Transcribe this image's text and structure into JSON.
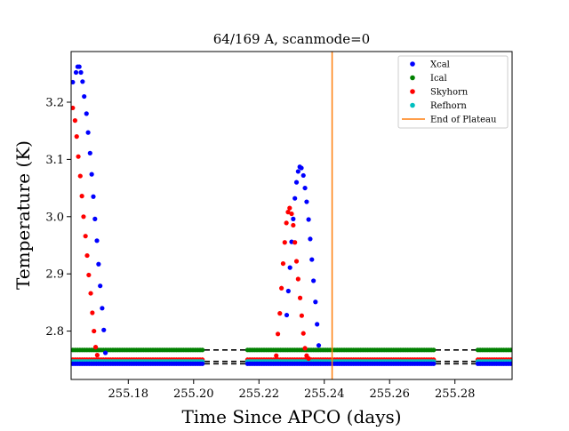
{
  "chart_data": {
    "type": "scatter",
    "title": "64/169 A, scanmode=0",
    "xlabel": "Time Since APCO (days)",
    "ylabel": "Temperature (K)",
    "xlim": [
      255.1625,
      255.2975
    ],
    "ylim": [
      2.7155,
      3.2885
    ],
    "xticks": [
      255.18,
      255.2,
      255.22,
      255.24,
      255.26,
      255.28
    ],
    "xtick_labels": [
      "255.18",
      "255.20",
      "255.22",
      "255.24",
      "255.26",
      "255.28"
    ],
    "yticks": [
      2.8,
      2.9,
      3.0,
      3.1,
      3.2
    ],
    "ytick_labels": [
      "2.8",
      "2.9",
      "3.0",
      "3.1",
      "3.2"
    ],
    "grid": false,
    "legend_position": "top-right",
    "series": [
      {
        "name": "Xcal",
        "color": "#0000ff",
        "points": [
          [
            255.163,
            3.235
          ],
          [
            255.164,
            3.252
          ],
          [
            255.1645,
            3.262
          ],
          [
            255.165,
            3.262
          ],
          [
            255.1655,
            3.252
          ],
          [
            255.166,
            3.236
          ],
          [
            255.1665,
            3.21
          ],
          [
            255.1672,
            3.18
          ],
          [
            255.1677,
            3.147
          ],
          [
            255.1683,
            3.111
          ],
          [
            255.1688,
            3.074
          ],
          [
            255.1693,
            3.035
          ],
          [
            255.1698,
            2.996
          ],
          [
            255.1704,
            2.958
          ],
          [
            255.1709,
            2.917
          ],
          [
            255.1714,
            2.879
          ],
          [
            255.172,
            2.84
          ],
          [
            255.1725,
            2.802
          ],
          [
            255.173,
            2.762
          ],
          [
            255.2285,
            2.828
          ],
          [
            255.229,
            2.87
          ],
          [
            255.2295,
            2.911
          ],
          [
            255.23,
            2.956
          ],
          [
            255.2305,
            2.996
          ],
          [
            255.231,
            3.032
          ],
          [
            255.2315,
            3.06
          ],
          [
            255.232,
            3.079
          ],
          [
            255.2325,
            3.087
          ],
          [
            255.233,
            3.085
          ],
          [
            255.2336,
            3.072
          ],
          [
            255.2341,
            3.05
          ],
          [
            255.2346,
            3.026
          ],
          [
            255.2352,
            2.995
          ],
          [
            255.2357,
            2.961
          ],
          [
            255.2362,
            2.925
          ],
          [
            255.2367,
            2.888
          ],
          [
            255.2373,
            2.851
          ],
          [
            255.2378,
            2.812
          ],
          [
            255.2383,
            2.775
          ]
        ]
      },
      {
        "name": "Ical",
        "color": "#008000",
        "points": []
      },
      {
        "name": "Skyhorn",
        "color": "#ff0000",
        "points": [
          [
            255.163,
            3.19
          ],
          [
            255.1637,
            3.168
          ],
          [
            255.1642,
            3.14
          ],
          [
            255.1647,
            3.105
          ],
          [
            255.1653,
            3.071
          ],
          [
            255.1658,
            3.036
          ],
          [
            255.1663,
            3.0
          ],
          [
            255.1669,
            2.966
          ],
          [
            255.1674,
            2.932
          ],
          [
            255.1679,
            2.898
          ],
          [
            255.1685,
            2.866
          ],
          [
            255.169,
            2.832
          ],
          [
            255.1695,
            2.8
          ],
          [
            255.17,
            2.772
          ],
          [
            255.1705,
            2.758
          ],
          [
            255.2253,
            2.757
          ],
          [
            255.2258,
            2.795
          ],
          [
            255.2264,
            2.831
          ],
          [
            255.2269,
            2.875
          ],
          [
            255.2274,
            2.918
          ],
          [
            255.2279,
            2.955
          ],
          [
            255.2284,
            2.989
          ],
          [
            255.2289,
            3.008
          ],
          [
            255.2294,
            3.015
          ],
          [
            255.23,
            3.005
          ],
          [
            255.2305,
            2.985
          ],
          [
            255.231,
            2.955
          ],
          [
            255.2315,
            2.922
          ],
          [
            255.232,
            2.891
          ],
          [
            255.2326,
            2.858
          ],
          [
            255.2331,
            2.827
          ],
          [
            255.2336,
            2.796
          ],
          [
            255.2341,
            2.77
          ],
          [
            255.2346,
            2.757
          ],
          [
            255.2352,
            2.752
          ]
        ]
      },
      {
        "name": "Refhorn",
        "color": "#00bfbf",
        "points": []
      },
      {
        "name": "End of Plateau",
        "color": "#ff7f0e",
        "type": "vline",
        "x": 255.2424
      }
    ],
    "plateau_segments": [
      {
        "x_start": 255.163,
        "x_end": 255.203
      },
      {
        "x_start": 255.2165,
        "x_end": 255.2735
      },
      {
        "x_start": 255.287,
        "x_end": 255.2975
      }
    ],
    "plateau_levels": {
      "Ical": 2.767,
      "Skyhorn": 2.75,
      "Refhorn": 2.747,
      "Xcal": 2.743
    },
    "reference_lines": [
      {
        "y": 2.767,
        "style": "dashed",
        "color": "#000000"
      },
      {
        "y": 2.747,
        "style": "dashed",
        "color": "#000000"
      },
      {
        "y": 2.743,
        "style": "dashed",
        "color": "#000000"
      }
    ]
  }
}
